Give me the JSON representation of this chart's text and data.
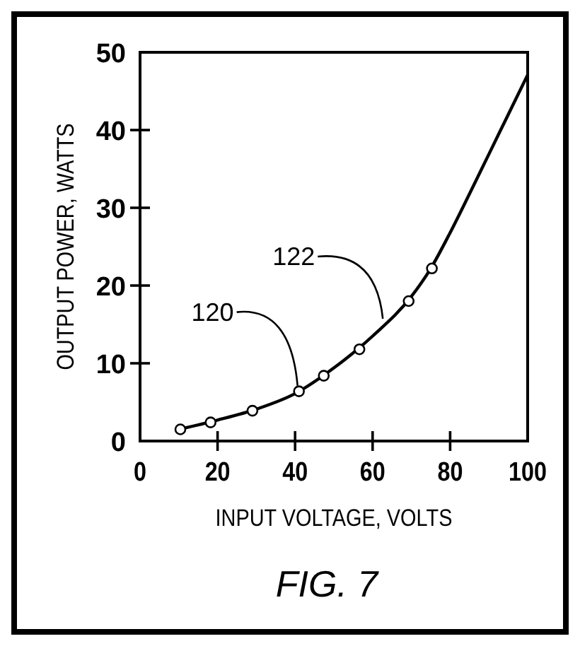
{
  "chart_data": {
    "type": "line",
    "xlabel": "INPUT VOLTAGE, VOLTS",
    "ylabel": "OUTPUT POWER, WATTS",
    "xlim": [
      0,
      100
    ],
    "ylim": [
      0,
      50
    ],
    "xticks": [
      0,
      20,
      40,
      60,
      80,
      100
    ],
    "yticks": [
      0,
      10,
      20,
      30,
      40,
      50
    ],
    "grid": false,
    "series": [
      {
        "color": "#000000",
        "x": [
          10,
          20,
          30,
          40,
          50,
          60,
          70,
          75,
          80,
          85,
          90,
          95,
          100
        ],
        "values": [
          1.5,
          2.7,
          4.1,
          6.1,
          9.4,
          13.5,
          18.6,
          22.2,
          26.8,
          31.8,
          36.9,
          42,
          47.1
        ],
        "marker": "none",
        "line_style": "solid"
      },
      {
        "type": "scatter",
        "color": "#000000",
        "x": [
          10.4,
          18.2,
          29,
          41,
          47.4,
          56.6,
          69.3,
          75.3
        ],
        "values": [
          1.5,
          2.4,
          3.9,
          6.4,
          8.4,
          11.8,
          18,
          22.2
        ],
        "marker": "circle"
      }
    ],
    "annotations": [
      {
        "text": "120",
        "x": 41,
        "y": 6.4
      },
      {
        "text": "122",
        "x": 63,
        "y": 15
      },
      "FIG. 7"
    ]
  }
}
